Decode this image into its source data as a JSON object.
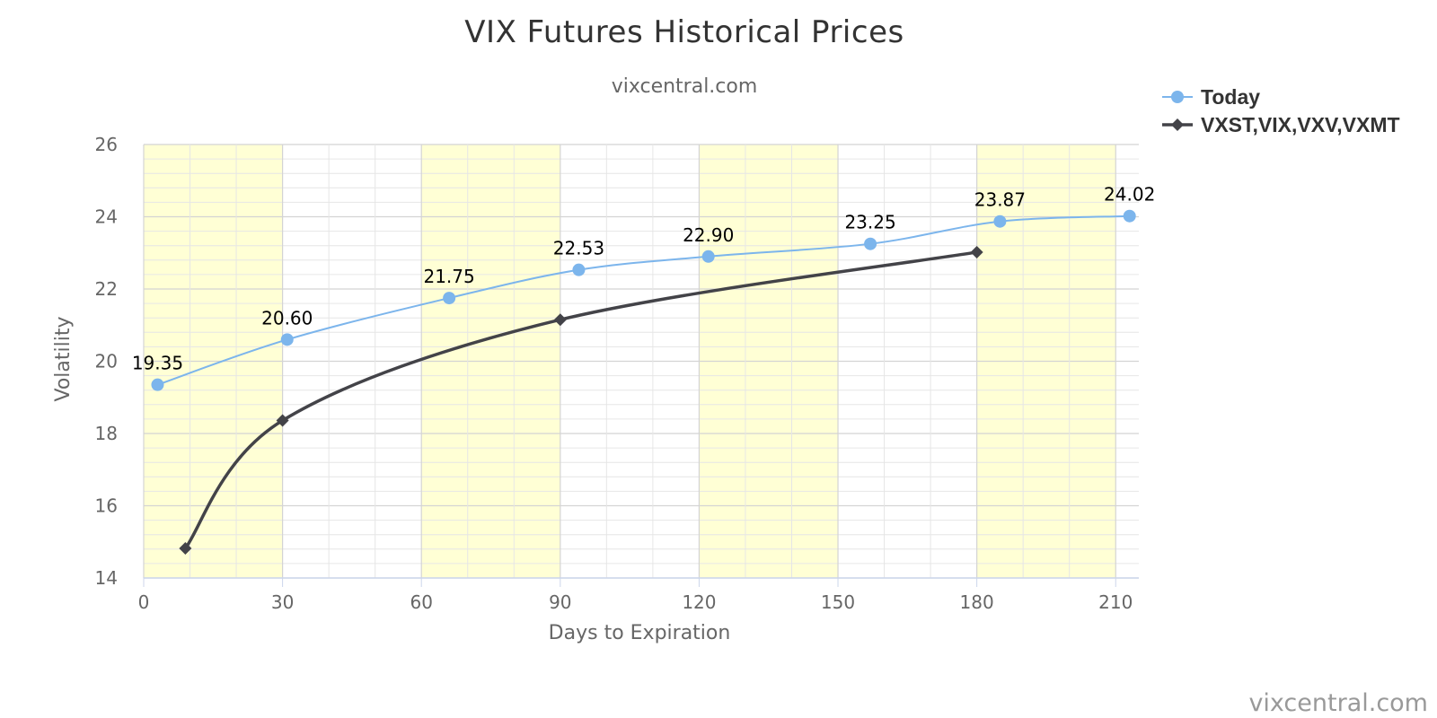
{
  "chart_data": {
    "type": "line",
    "title": "VIX Futures Historical Prices",
    "subtitle": "vixcentral.com",
    "xlabel": "Days to Expiration",
    "ylabel": "Volatility",
    "xlim": [
      0,
      215
    ],
    "ylim": [
      14,
      26
    ],
    "x_ticks": [
      "0",
      "30",
      "60",
      "90",
      "120",
      "150",
      "180",
      "210"
    ],
    "y_ticks": [
      "14",
      "16",
      "18",
      "20",
      "22",
      "24",
      "26"
    ],
    "plot_bands_x": [
      [
        0,
        30
      ],
      [
        60,
        90
      ],
      [
        120,
        150
      ],
      [
        180,
        210
      ]
    ],
    "band_color": "#FFFFD5",
    "legend_position": "top-right",
    "grid": true,
    "series": [
      {
        "name": "Today",
        "marker": "circle",
        "color": "#7CB5EC",
        "x": [
          3,
          31,
          66,
          94,
          122,
          157,
          185,
          213
        ],
        "y": [
          19.35,
          20.6,
          21.75,
          22.53,
          22.9,
          23.25,
          23.87,
          24.02
        ],
        "labels": [
          "19.35",
          "20.60",
          "21.75",
          "22.53",
          "22.90",
          "23.25",
          "23.87",
          "24.02"
        ]
      },
      {
        "name": "VXST,VIX,VXV,VXMT",
        "marker": "diamond",
        "color": "#434348",
        "x": [
          9,
          30,
          90,
          180
        ],
        "y": [
          14.82,
          18.36,
          21.15,
          23.02
        ]
      }
    ],
    "credits": "vixcentral.com"
  }
}
